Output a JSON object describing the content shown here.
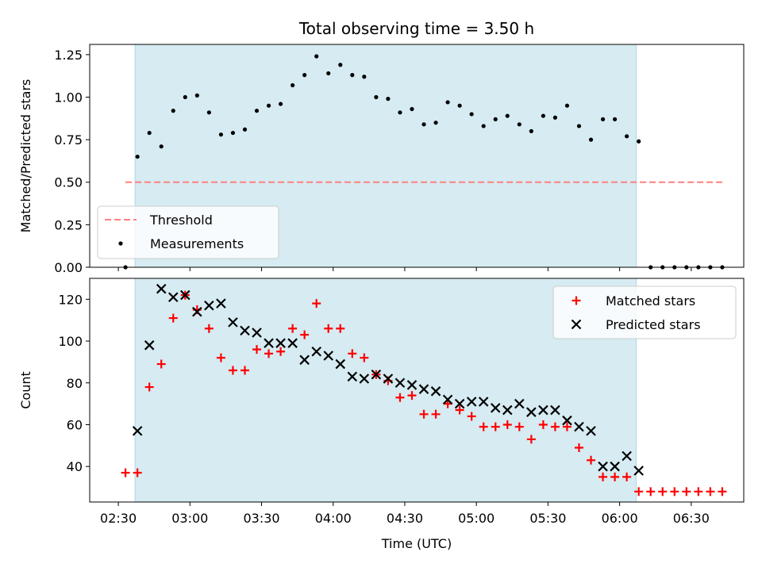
{
  "title": "Total observing time = 3.50 h",
  "xlabel": "Time (UTC)",
  "x_ticks": [
    "02:30",
    "03:00",
    "03:30",
    "04:00",
    "04:30",
    "05:00",
    "05:30",
    "06:00",
    "06:30"
  ],
  "colors": {
    "shade": "#add8e6",
    "threshold": "#ff7f7f",
    "matched": "#ff0000",
    "predicted": "#000000",
    "measurements": "#000000"
  },
  "chart_data": [
    {
      "type": "scatter",
      "ylabel": "Matched/Predicted stars",
      "ylim": [
        0,
        1.31
      ],
      "yticks": [
        "0.00",
        "0.25",
        "0.50",
        "0.75",
        "1.00",
        "1.25"
      ],
      "shaded_span": [
        "02:37",
        "06:07"
      ],
      "threshold": {
        "value": 0.5,
        "x_range": [
          "02:33",
          "06:43"
        ]
      },
      "legend": [
        "Threshold",
        "Measurements"
      ],
      "legend_location": "lower-left",
      "series": [
        {
          "name": "Measurements",
          "x": [
            "02:33",
            "02:38",
            "02:43",
            "02:48",
            "02:53",
            "02:58",
            "03:03",
            "03:08",
            "03:13",
            "03:18",
            "03:23",
            "03:28",
            "03:33",
            "03:38",
            "03:43",
            "03:48",
            "03:53",
            "03:58",
            "04:03",
            "04:08",
            "04:13",
            "04:18",
            "04:23",
            "04:28",
            "04:33",
            "04:38",
            "04:43",
            "04:48",
            "04:53",
            "04:58",
            "05:03",
            "05:08",
            "05:13",
            "05:18",
            "05:23",
            "05:28",
            "05:33",
            "05:38",
            "05:43",
            "05:48",
            "05:53",
            "05:58",
            "06:03",
            "06:08",
            "06:13",
            "06:18",
            "06:23",
            "06:28",
            "06:33",
            "06:38",
            "06:43"
          ],
          "y": [
            0.0,
            0.65,
            0.79,
            0.71,
            0.92,
            1.0,
            1.01,
            0.91,
            0.78,
            0.79,
            0.81,
            0.92,
            0.95,
            0.96,
            1.07,
            1.13,
            1.24,
            1.14,
            1.19,
            1.13,
            1.12,
            1.0,
            0.99,
            0.91,
            0.93,
            0.84,
            0.85,
            0.97,
            0.95,
            0.9,
            0.83,
            0.87,
            0.89,
            0.84,
            0.8,
            0.89,
            0.88,
            0.95,
            0.83,
            0.75,
            0.87,
            0.87,
            0.77,
            0.74,
            0.0,
            0.0,
            0.0,
            0.0,
            0.0,
            0.0,
            0.0
          ]
        }
      ]
    },
    {
      "type": "scatter",
      "ylabel": "Count",
      "ylim": [
        23,
        130
      ],
      "yticks": [
        "40",
        "60",
        "80",
        "100",
        "120"
      ],
      "shaded_span": [
        "02:37",
        "06:07"
      ],
      "legend": [
        "Matched stars",
        "Predicted stars"
      ],
      "legend_location": "upper-right",
      "series": [
        {
          "name": "Matched stars",
          "x": [
            "02:33",
            "02:38",
            "02:43",
            "02:48",
            "02:53",
            "02:58",
            "03:03",
            "03:08",
            "03:13",
            "03:18",
            "03:23",
            "03:28",
            "03:33",
            "03:38",
            "03:43",
            "03:48",
            "03:53",
            "03:58",
            "04:03",
            "04:08",
            "04:13",
            "04:18",
            "04:23",
            "04:28",
            "04:33",
            "04:38",
            "04:43",
            "04:48",
            "04:53",
            "04:58",
            "05:03",
            "05:08",
            "05:13",
            "05:18",
            "05:23",
            "05:28",
            "05:33",
            "05:38",
            "05:43",
            "05:48",
            "05:53",
            "05:58",
            "06:03",
            "06:08",
            "06:13",
            "06:18",
            "06:23",
            "06:28",
            "06:33",
            "06:38",
            "06:43"
          ],
          "y": [
            37,
            37,
            78,
            89,
            111,
            122,
            115,
            106,
            92,
            86,
            86,
            96,
            94,
            95,
            106,
            103,
            118,
            106,
            106,
            94,
            92,
            84,
            81,
            73,
            74,
            65,
            65,
            70,
            67,
            64,
            59,
            59,
            60,
            59,
            53,
            60,
            59,
            59,
            49,
            43,
            35,
            35,
            35,
            28,
            28,
            28,
            28,
            28,
            28,
            28,
            28
          ]
        },
        {
          "name": "Predicted stars",
          "x": [
            "02:38",
            "02:43",
            "02:48",
            "02:53",
            "02:58",
            "03:03",
            "03:08",
            "03:13",
            "03:18",
            "03:23",
            "03:28",
            "03:33",
            "03:38",
            "03:43",
            "03:48",
            "03:53",
            "03:58",
            "04:03",
            "04:08",
            "04:13",
            "04:18",
            "04:23",
            "04:28",
            "04:33",
            "04:38",
            "04:43",
            "04:48",
            "04:53",
            "04:58",
            "05:03",
            "05:08",
            "05:13",
            "05:18",
            "05:23",
            "05:28",
            "05:33",
            "05:38",
            "05:43",
            "05:48",
            "05:53",
            "05:58",
            "06:03",
            "06:08"
          ],
          "y": [
            57,
            98,
            125,
            121,
            122,
            114,
            117,
            118,
            109,
            105,
            104,
            99,
            99,
            99,
            91,
            95,
            93,
            89,
            83,
            82,
            84,
            82,
            80,
            79,
            77,
            76,
            72,
            70,
            71,
            71,
            68,
            67,
            70,
            66,
            67,
            67,
            62,
            59,
            57,
            40,
            40,
            45,
            38
          ]
        }
      ]
    }
  ]
}
